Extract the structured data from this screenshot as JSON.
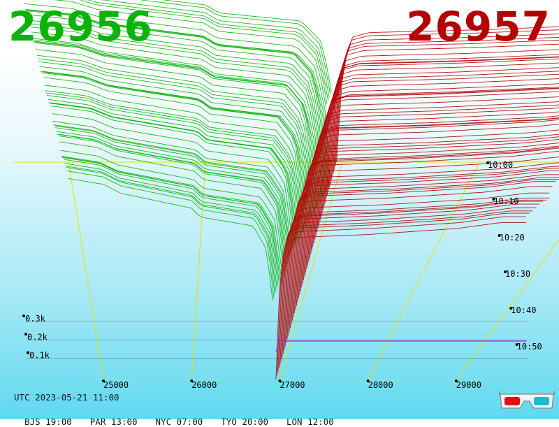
{
  "header": {
    "bid_price": "26956",
    "ask_price": "26957",
    "bid_color": "#0ab20a",
    "ask_color": "#b40000"
  },
  "footer": {
    "utc": "UTC 2023-05-21 11:00",
    "zones": [
      "BJS 19:00",
      "PAR 13:00",
      "NYC 07:00",
      "TYO 20:00",
      "LON 12:00"
    ]
  },
  "icons": {
    "glasses": "3d-glasses-icon"
  },
  "chart_data": {
    "type": "area",
    "x_ticks": [
      "25000",
      "26000",
      "27000",
      "28000",
      "29000"
    ],
    "x_tick_values": [
      25000,
      26000,
      27000,
      28000,
      29000
    ],
    "volume_ticks": [
      "0.1k",
      "0.2k",
      "0.3k"
    ],
    "volume_tick_values": [
      100,
      200,
      300
    ],
    "time_ticks": [
      "10:00",
      "10:10",
      "10:20",
      "10:30",
      "10:40",
      "10:50"
    ],
    "xlim": [
      24600,
      29800
    ],
    "mid_price": 26956.5,
    "series": [
      {
        "name": "bids",
        "color": "#0ab20a"
      },
      {
        "name": "asks",
        "color": "#b40000"
      }
    ],
    "depth_profile": {
      "bids": [
        [
          24600,
          340
        ],
        [
          25000,
          330
        ],
        [
          25200,
          315
        ],
        [
          26000,
          290
        ],
        [
          26100,
          275
        ],
        [
          26700,
          260
        ],
        [
          26850,
          220
        ],
        [
          26930,
          120
        ],
        [
          26956,
          0
        ]
      ],
      "asks": [
        [
          26957,
          0
        ],
        [
          26990,
          140
        ],
        [
          27050,
          230
        ],
        [
          27200,
          240
        ],
        [
          28000,
          245
        ],
        [
          29000,
          255
        ],
        [
          29500,
          265
        ],
        [
          29800,
          265
        ]
      ]
    },
    "snapshots": 60,
    "grid": true
  }
}
